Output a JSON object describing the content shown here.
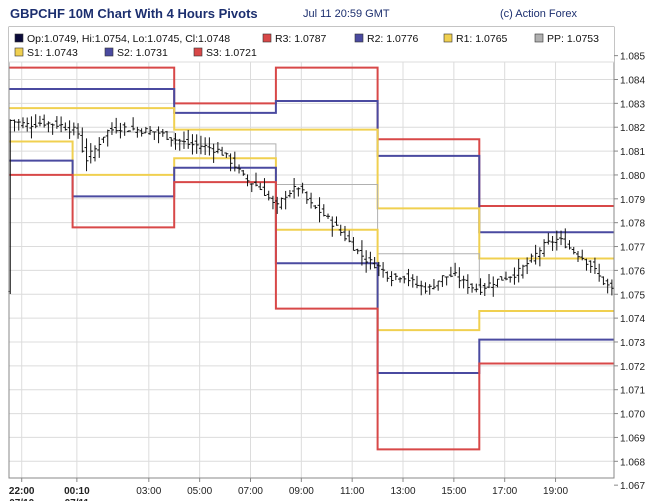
{
  "header": {
    "title": "GBPCHF 10M Chart With 4 Hours Pivots",
    "timestamp": "Jul 11 20:59 GMT",
    "copyright": "(c) Action Forex"
  },
  "chart_data": {
    "type": "line",
    "title": "GBPCHF 10M Chart With 4 Hours Pivots",
    "ohlc_last": {
      "label": "Op:1.0749, Hi:1.0754, Lo:1.0745, Cl:1.0748",
      "open": 1.0749,
      "high": 1.0754,
      "low": 1.0745,
      "close": 1.0748,
      "color": "#0a0a3a"
    },
    "legend": [
      {
        "key": "R3",
        "label": "R3: 1.0787",
        "value": 1.0787,
        "color": "#d84848"
      },
      {
        "key": "R2",
        "label": "R2: 1.0776",
        "value": 1.0776,
        "color": "#4a4aa0"
      },
      {
        "key": "R1",
        "label": "R1: 1.0765",
        "value": 1.0765,
        "color": "#f0d050"
      },
      {
        "key": "PP",
        "label": "PP: 1.0753",
        "value": 1.0753,
        "color": "#b0b0b0"
      },
      {
        "key": "S1",
        "label": "S1: 1.0743",
        "value": 1.0743,
        "color": "#f0d050"
      },
      {
        "key": "S2",
        "label": "S2: 1.0731",
        "value": 1.0731,
        "color": "#4a4aa0"
      },
      {
        "key": "S3",
        "label": "S3: 1.0721",
        "value": 1.0721,
        "color": "#d84848"
      }
    ],
    "ylim": [
      1.0673,
      1.0862
    ],
    "y_ticks": [
      "1.085",
      "1.084",
      "1.083",
      "1.082",
      "1.081",
      "1.080",
      "1.079",
      "1.078",
      "1.077",
      "1.076",
      "1.075",
      "1.074",
      "1.073",
      "1.072",
      "1.071",
      "1.070",
      "1.069",
      "1.068",
      "1.067"
    ],
    "x_ticks": [
      {
        "label": "22:00",
        "bold": true,
        "sub": "07/10"
      },
      {
        "label": "00:10",
        "bold": true,
        "sub": "07/11"
      },
      {
        "label": "03:00",
        "bold": false
      },
      {
        "label": "05:00",
        "bold": false
      },
      {
        "label": "07:00",
        "bold": false
      },
      {
        "label": "09:00",
        "bold": false
      },
      {
        "label": "11:00",
        "bold": false
      },
      {
        "label": "13:00",
        "bold": false
      },
      {
        "label": "15:00",
        "bold": false
      },
      {
        "label": "17:00",
        "bold": false
      },
      {
        "label": "19:00",
        "bold": false
      }
    ],
    "x_range_hours": [
      -0.5,
      23.3
    ],
    "x_tick_hours": [
      0,
      2.17,
      5,
      7,
      9,
      11,
      13,
      15,
      17,
      19,
      21
    ],
    "segment_bounds": [
      -0.5,
      2,
      6,
      10,
      14,
      18,
      23.3
    ],
    "pivots": {
      "R3": [
        1.0845,
        1.0845,
        1.083,
        1.0845,
        1.0815,
        1.0787
      ],
      "R2": [
        1.0836,
        1.0836,
        1.0826,
        1.0831,
        1.0808,
        1.0776
      ],
      "R1": [
        1.0828,
        1.0828,
        1.0819,
        1.0819,
        1.0786,
        1.0765
      ],
      "PP": [
        1.0818,
        1.0818,
        1.0813,
        1.0796,
        1.0767,
        1.0753
      ],
      "S1": [
        1.0814,
        1.08,
        1.0807,
        1.0777,
        1.0735,
        1.0743
      ],
      "S2": [
        1.0806,
        1.0791,
        1.0803,
        1.0763,
        1.0717,
        1.0731
      ],
      "S3": [
        1.08,
        1.0778,
        1.0797,
        1.0744,
        1.0685,
        1.0721
      ]
    },
    "price_path": [
      [
        -0.5,
        1.0823
      ],
      [
        0.2,
        1.0821
      ],
      [
        0.8,
        1.0822
      ],
      [
        1.5,
        1.0821
      ],
      [
        2.2,
        1.0818
      ],
      [
        2.5,
        1.0806
      ],
      [
        2.9,
        1.0811
      ],
      [
        3.3,
        1.0818
      ],
      [
        3.8,
        1.082
      ],
      [
        4.5,
        1.0819
      ],
      [
        5.3,
        1.0818
      ],
      [
        6.0,
        1.0815
      ],
      [
        6.5,
        1.0813
      ],
      [
        7.2,
        1.0812
      ],
      [
        7.8,
        1.081
      ],
      [
        8.3,
        1.0805
      ],
      [
        8.8,
        1.0798
      ],
      [
        9.2,
        1.0796
      ],
      [
        9.6,
        1.0792
      ],
      [
        10.0,
        1.0786
      ],
      [
        10.4,
        1.0792
      ],
      [
        10.9,
        1.0795
      ],
      [
        11.3,
        1.0788
      ],
      [
        11.8,
        1.0784
      ],
      [
        12.3,
        1.0779
      ],
      [
        12.8,
        1.0773
      ],
      [
        13.2,
        1.0768
      ],
      [
        13.6,
        1.0764
      ],
      [
        14.0,
        1.0762
      ],
      [
        14.5,
        1.0757
      ],
      [
        15.0,
        1.0758
      ],
      [
        15.5,
        1.0754
      ],
      [
        16.0,
        1.0752
      ],
      [
        16.5,
        1.0757
      ],
      [
        17.0,
        1.0758
      ],
      [
        17.5,
        1.0754
      ],
      [
        18.0,
        1.0752
      ],
      [
        18.5,
        1.0755
      ],
      [
        19.0,
        1.0757
      ],
      [
        19.5,
        1.0759
      ],
      [
        20.0,
        1.0764
      ],
      [
        20.5,
        1.077
      ],
      [
        21.0,
        1.0773
      ],
      [
        21.3,
        1.0772
      ],
      [
        21.7,
        1.0768
      ],
      [
        22.0,
        1.0766
      ],
      [
        22.4,
        1.0762
      ],
      [
        22.8,
        1.0756
      ],
      [
        23.3,
        1.0751
      ]
    ],
    "grid": true,
    "axis_color": "#888888"
  }
}
